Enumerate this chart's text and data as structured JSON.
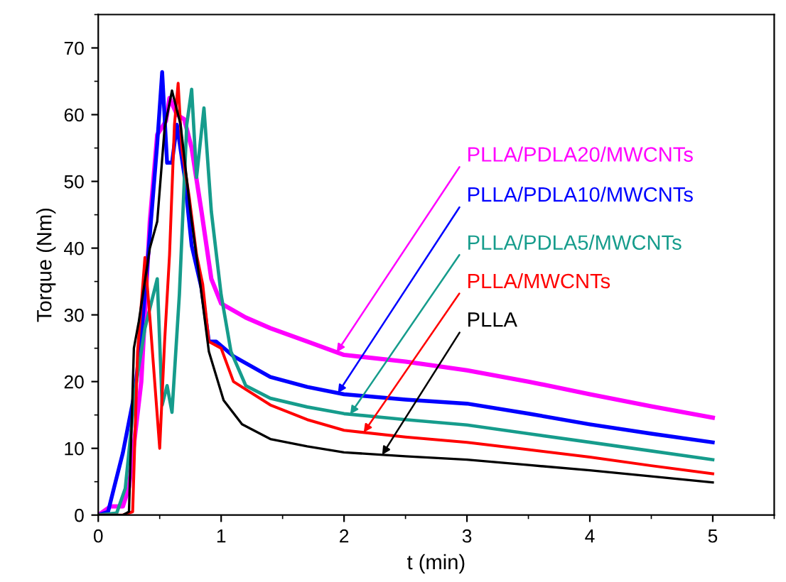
{
  "chart_data": {
    "type": "line",
    "xlabel": "t (min)",
    "ylabel": "Torque (Nm)",
    "xlim": [
      0,
      5.5
    ],
    "ylim": [
      0,
      75
    ],
    "xticks": [
      0,
      1,
      2,
      3,
      4,
      5
    ],
    "yticks": [
      0,
      10,
      20,
      30,
      40,
      50,
      60,
      70
    ],
    "grid": false,
    "legend": false,
    "marker": "none",
    "line_style": "solid",
    "series": [
      {
        "name": "PLLA/PDLA20/MWCNTs",
        "color": "#ff00ff",
        "x": [
          0,
          0.1,
          0.2,
          0.25,
          0.35,
          0.42,
          0.48,
          0.55,
          0.58,
          0.64,
          0.7,
          0.76,
          0.84,
          0.92,
          1.0,
          1.2,
          1.4,
          1.7,
          2.0,
          2.5,
          3.0,
          3.5,
          4.0,
          4.5,
          5.0
        ],
        "values": [
          0,
          1.3,
          1.3,
          4.2,
          20,
          44,
          57,
          59,
          62.5,
          60,
          59.3,
          55,
          45.5,
          35.4,
          31.7,
          29.6,
          28,
          26,
          24,
          23,
          21.7,
          20,
          18.1,
          16.3,
          14.6
        ]
      },
      {
        "name": "PLLA/PDLA10/MWCNTs",
        "color": "#0000ff",
        "x": [
          0,
          0.08,
          0.13,
          0.2,
          0.3,
          0.36,
          0.42,
          0.48,
          0.52,
          0.56,
          0.6,
          0.64,
          0.7,
          0.76,
          0.84,
          0.9,
          0.96,
          1.1,
          1.4,
          1.7,
          2.0,
          2.5,
          3.0,
          3.5,
          4.0,
          4.5,
          5.0
        ],
        "values": [
          0,
          0.5,
          4.2,
          9.3,
          18.7,
          29,
          42,
          55.7,
          66.4,
          52.8,
          52.8,
          58.5,
          51,
          40.4,
          34,
          26,
          26,
          23.8,
          20.7,
          19.2,
          18.1,
          17.3,
          16.7,
          15.2,
          13.6,
          12.2,
          10.9
        ]
      },
      {
        "name": "PLLA/PDLA5/MWCNTs",
        "color": "#169c8c",
        "x": [
          0,
          0.15,
          0.22,
          0.3,
          0.38,
          0.48,
          0.52,
          0.56,
          0.6,
          0.66,
          0.72,
          0.76,
          0.8,
          0.86,
          0.92,
          1.0,
          1.08,
          1.2,
          1.4,
          1.7,
          2.0,
          2.5,
          3.0,
          3.5,
          4.0,
          4.5,
          5.0
        ],
        "values": [
          0,
          0.3,
          4,
          18.7,
          28,
          35.4,
          16.5,
          19.4,
          15.4,
          33,
          58.5,
          63.8,
          50.6,
          61,
          45.5,
          33,
          24.5,
          19.4,
          17.5,
          16.2,
          15.2,
          14.3,
          13.5,
          12.2,
          10.9,
          9.6,
          8.3
        ]
      },
      {
        "name": "PLLA/MWCNTs",
        "color": "#ff0000",
        "x": [
          0,
          0.2,
          0.28,
          0.32,
          0.38,
          0.42,
          0.5,
          0.54,
          0.58,
          0.62,
          0.65,
          0.68,
          0.74,
          0.8,
          0.85,
          0.9,
          1.0,
          1.1,
          1.4,
          1.7,
          2.0,
          2.5,
          3.0,
          3.5,
          4.0,
          4.5,
          5.0
        ],
        "values": [
          0,
          0,
          0.5,
          24.5,
          38.6,
          29.6,
          10,
          26,
          39,
          58.5,
          64.7,
          55,
          47.7,
          39,
          34.6,
          26,
          25,
          20,
          16.5,
          14.3,
          12.7,
          11.7,
          10.9,
          9.8,
          8.7,
          7.4,
          6.2
        ]
      },
      {
        "name": "PLLA",
        "color": "#000000",
        "x": [
          0,
          0.2,
          0.25,
          0.29,
          0.33,
          0.42,
          0.48,
          0.54,
          0.6,
          0.67,
          0.75,
          0.83,
          0.9,
          1.02,
          1.17,
          1.4,
          1.7,
          2.0,
          2.5,
          3.0,
          3.5,
          4.0,
          4.5,
          5.0
        ],
        "values": [
          0,
          0,
          0.5,
          25,
          29,
          40,
          44,
          58,
          63.6,
          58.5,
          45.5,
          34.6,
          24.5,
          17.2,
          13.6,
          11.4,
          10.3,
          9.4,
          8.8,
          8.3,
          7.5,
          6.7,
          5.8,
          4.9
        ]
      }
    ]
  }
}
